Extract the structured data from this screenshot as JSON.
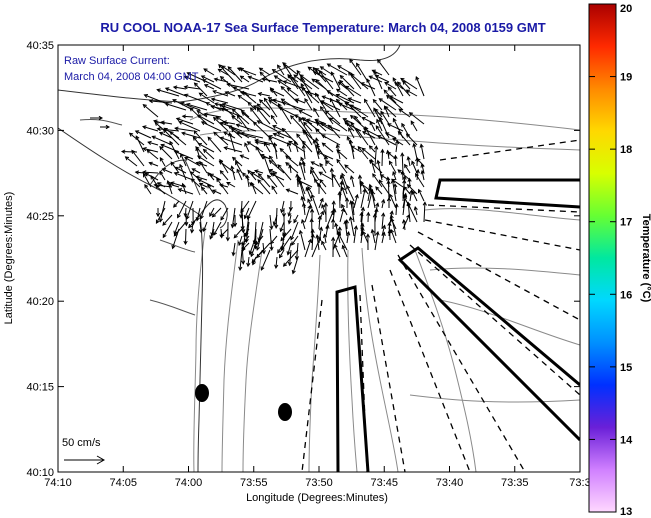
{
  "title": "RU COOL  NOAA-17  Sea Surface Temperature:  March 04, 2008 0159 GMT",
  "info_line1": "Raw Surface Current:",
  "info_line2": "March 04, 2008 04:00 GMT",
  "x_axis_label": "Longitude (Degrees:Minutes)",
  "y_axis_label": "Latitude (Degrees:Minutes)",
  "x_ticks": [
    "74:10",
    "74:05",
    "74:00",
    "73:55",
    "73:50",
    "73:45",
    "73:40",
    "73:35",
    "73:3"
  ],
  "y_ticks": [
    "40:35",
    "40:30",
    "40:25",
    "40:20",
    "40:15",
    "40:10"
  ],
  "colorbar": {
    "label": "Temperature (°C)",
    "ticks": [
      "20",
      "19",
      "18",
      "17",
      "16",
      "15",
      "14",
      "13"
    ],
    "colors": [
      "#aa0000",
      "#ff2a00",
      "#ff8a00",
      "#ffd800",
      "#d8ff00",
      "#66ff33",
      "#00e8a0",
      "#00d8ff",
      "#0090ff",
      "#0030ff",
      "#6a20d8",
      "#d080ff",
      "#ffd8ff"
    ]
  },
  "scale_arrow_label": "50 cm/s",
  "colors": {
    "text_blue": "#1a1aa6",
    "contour": "#888888",
    "coast": "#333333"
  }
}
